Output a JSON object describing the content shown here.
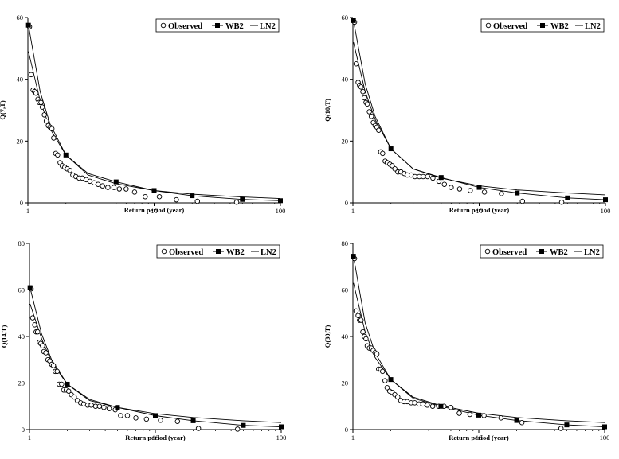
{
  "legend": {
    "observed": "Observed",
    "wb2": "WB2",
    "ln2": "LN2"
  },
  "chart_data": [
    {
      "type": "scatter",
      "ylabel": "Q(7,T)",
      "xlabel": "Return period (year)",
      "xscale": "log",
      "xlim": [
        1,
        100
      ],
      "ylim": [
        0,
        60
      ],
      "x_ticks": [
        "1",
        "10",
        "100"
      ],
      "y_ticks": [
        "0",
        "20",
        "40",
        "60"
      ],
      "legend_position": "top-right",
      "series": [
        {
          "name": "Observed",
          "marker": "open-circle",
          "x": [
            1.03,
            1.06,
            1.1,
            1.13,
            1.16,
            1.2,
            1.23,
            1.27,
            1.3,
            1.35,
            1.4,
            1.45,
            1.5,
            1.55,
            1.6,
            1.66,
            1.72,
            1.8,
            1.87,
            1.96,
            2.05,
            2.15,
            2.27,
            2.4,
            2.55,
            2.7,
            2.9,
            3.1,
            3.35,
            3.6,
            3.9,
            4.3,
            4.8,
            5.3,
            6,
            7,
            8.5,
            11,
            15,
            22,
            45
          ],
          "y": [
            57,
            41.5,
            36.5,
            36,
            35.5,
            33.5,
            32.5,
            32.5,
            31,
            28.5,
            26.5,
            25,
            24.5,
            24,
            21,
            16,
            15.5,
            13,
            12,
            11.5,
            11,
            10.5,
            9,
            8.5,
            8,
            8,
            7.5,
            7,
            6.5,
            6,
            5.5,
            5,
            5,
            4.5,
            4.5,
            3.5,
            2,
            2,
            1,
            0.5,
            0.2
          ]
        },
        {
          "name": "WB2",
          "marker": "filled-square",
          "x": [
            1.01,
            2,
            5,
            10,
            20,
            50,
            100
          ],
          "y": [
            57.5,
            15.5,
            6.8,
            4,
            2.3,
            1.1,
            0.7
          ]
        },
        {
          "name": "LN2",
          "line": "solid",
          "x": [
            1.01,
            1.25,
            1.5,
            2,
            3,
            5,
            10,
            20,
            50,
            100
          ],
          "y": [
            49,
            33,
            24,
            15.5,
            9,
            6.2,
            4,
            2.8,
            1.9,
            1.4
          ]
        },
        {
          "name": "",
          "line": "solid",
          "x": [
            1.01,
            1.25,
            1.5,
            2,
            3,
            5,
            10,
            20,
            50,
            100
          ],
          "y": [
            57.5,
            36,
            25.5,
            15.5,
            9.5,
            6.8,
            4,
            2.3,
            1.1,
            0.7
          ]
        }
      ]
    },
    {
      "type": "scatter",
      "ylabel": "Q(10,T)",
      "xlabel": "Return period (year)",
      "xscale": "log",
      "xlim": [
        1,
        100
      ],
      "ylim": [
        0,
        60
      ],
      "x_ticks": [
        "1",
        "10",
        "100"
      ],
      "y_ticks": [
        "0",
        "20",
        "40",
        "60"
      ],
      "legend_position": "top-right",
      "series": [
        {
          "name": "Observed",
          "marker": "open-circle",
          "x": [
            1.03,
            1.06,
            1.1,
            1.13,
            1.16,
            1.2,
            1.23,
            1.27,
            1.3,
            1.35,
            1.4,
            1.45,
            1.5,
            1.55,
            1.6,
            1.66,
            1.72,
            1.8,
            1.87,
            1.96,
            2.05,
            2.15,
            2.27,
            2.4,
            2.55,
            2.7,
            2.9,
            3.1,
            3.35,
            3.6,
            3.9,
            4.3,
            4.8,
            5.3,
            6,
            7,
            8.5,
            11,
            15,
            22,
            45
          ],
          "y": [
            58.5,
            45,
            39,
            38,
            37.5,
            36,
            34,
            32.5,
            32,
            29.5,
            28,
            26,
            25,
            24.5,
            23.5,
            16.5,
            16,
            13.5,
            13,
            12.5,
            12,
            11,
            10,
            10,
            9.5,
            9,
            9,
            8.5,
            8.5,
            8.5,
            8.5,
            8,
            7,
            6,
            5,
            4.5,
            4,
            3.5,
            3,
            0.5,
            0.2
          ]
        },
        {
          "name": "WB2",
          "marker": "filled-square",
          "x": [
            1.01,
            2,
            5,
            10,
            20,
            50,
            100
          ],
          "y": [
            59,
            17.5,
            8.2,
            5,
            3.2,
            1.6,
            1
          ]
        },
        {
          "name": "LN2",
          "line": "solid",
          "x": [
            1.01,
            1.25,
            1.5,
            2,
            3,
            5,
            10,
            20,
            50,
            100
          ],
          "y": [
            52,
            36,
            27,
            17.5,
            11,
            8,
            5.5,
            4.2,
            3.2,
            2.6
          ]
        },
        {
          "name": "",
          "line": "solid",
          "x": [
            1.01,
            1.25,
            1.5,
            2,
            3,
            5,
            10,
            20,
            50,
            100
          ],
          "y": [
            59,
            38.5,
            28,
            17.5,
            11,
            8.2,
            5,
            3.2,
            1.6,
            1
          ]
        }
      ]
    },
    {
      "type": "scatter",
      "ylabel": "Q(14,T)",
      "xlabel": "Return period (year)",
      "xscale": "log",
      "xlim": [
        1,
        100
      ],
      "ylim": [
        0,
        80
      ],
      "x_ticks": [
        "1",
        "10",
        "100"
      ],
      "y_ticks": [
        "0",
        "20",
        "40",
        "60",
        "80"
      ],
      "legend_position": "top-right",
      "series": [
        {
          "name": "Observed",
          "marker": "open-circle",
          "x": [
            1.03,
            1.06,
            1.1,
            1.13,
            1.16,
            1.2,
            1.23,
            1.27,
            1.3,
            1.35,
            1.4,
            1.45,
            1.5,
            1.55,
            1.6,
            1.66,
            1.72,
            1.8,
            1.87,
            1.96,
            2.05,
            2.15,
            2.27,
            2.4,
            2.55,
            2.7,
            2.9,
            3.1,
            3.35,
            3.6,
            3.9,
            4.3,
            4.8,
            5.3,
            6,
            7,
            8.5,
            11,
            15,
            22,
            45
          ],
          "y": [
            60.5,
            48,
            45,
            42,
            42,
            37.5,
            37,
            36,
            33.5,
            33,
            30,
            29.5,
            28,
            27.5,
            25,
            25,
            19.5,
            19.5,
            17,
            17,
            16.5,
            15,
            14,
            12.5,
            11.5,
            11,
            10.5,
            10.5,
            10,
            10,
            9.5,
            9,
            8.5,
            6,
            6,
            5,
            4.5,
            4,
            3.5,
            0.5,
            0.2
          ]
        },
        {
          "name": "WB2",
          "marker": "filled-square",
          "x": [
            1.01,
            2,
            5,
            10,
            20,
            50,
            100
          ],
          "y": [
            61,
            19.5,
            9.5,
            6,
            3.8,
            1.8,
            1.2
          ]
        },
        {
          "name": "LN2",
          "line": "solid",
          "x": [
            1.01,
            1.25,
            1.5,
            2,
            3,
            5,
            10,
            20,
            50,
            100
          ],
          "y": [
            54,
            39,
            29,
            19.5,
            13,
            9.5,
            6.8,
            5.2,
            3.8,
            3
          ]
        },
        {
          "name": "",
          "line": "solid",
          "x": [
            1.01,
            1.25,
            1.5,
            2,
            3,
            5,
            10,
            20,
            50,
            100
          ],
          "y": [
            61,
            41,
            30,
            19.5,
            12.5,
            9.5,
            6,
            3.8,
            1.8,
            1.2
          ]
        }
      ]
    },
    {
      "type": "scatter",
      "ylabel": "Q(30,T)",
      "xlabel": "Return period (year)",
      "xscale": "log",
      "xlim": [
        1,
        100
      ],
      "ylim": [
        0,
        80
      ],
      "x_ticks": [
        "1",
        "10",
        "100"
      ],
      "y_ticks": [
        "0",
        "20",
        "40",
        "60",
        "80"
      ],
      "legend_position": "top-right",
      "series": [
        {
          "name": "Observed",
          "marker": "open-circle",
          "x": [
            1.03,
            1.06,
            1.1,
            1.13,
            1.16,
            1.2,
            1.23,
            1.27,
            1.3,
            1.35,
            1.4,
            1.45,
            1.5,
            1.55,
            1.6,
            1.66,
            1.72,
            1.8,
            1.87,
            1.96,
            2.05,
            2.15,
            2.27,
            2.4,
            2.55,
            2.7,
            2.9,
            3.1,
            3.35,
            3.6,
            3.9,
            4.3,
            4.8,
            5.3,
            6,
            7,
            8.5,
            11,
            15,
            22,
            45
          ],
          "y": [
            73.5,
            51,
            49,
            47,
            47,
            42,
            40,
            39,
            36,
            35,
            35,
            34,
            33,
            32.5,
            26,
            26,
            25,
            21,
            18,
            16.5,
            16,
            15,
            14,
            12.5,
            12,
            12,
            11.5,
            11.5,
            11,
            11,
            10.5,
            10,
            10,
            10,
            9.5,
            7,
            6.5,
            6,
            5,
            3,
            0.5
          ]
        },
        {
          "name": "WB2",
          "marker": "filled-square",
          "x": [
            1.01,
            2,
            5,
            10,
            20,
            50,
            100
          ],
          "y": [
            74.5,
            21.5,
            10,
            6.2,
            3.9,
            2,
            1.2
          ]
        },
        {
          "name": "LN2",
          "line": "solid",
          "x": [
            1.01,
            1.25,
            1.5,
            2,
            3,
            5,
            10,
            20,
            50,
            100
          ],
          "y": [
            63,
            42,
            31,
            21.5,
            14,
            10.3,
            7,
            5.2,
            3.8,
            3
          ]
        },
        {
          "name": "",
          "line": "solid",
          "x": [
            1.01,
            1.25,
            1.5,
            2,
            3,
            5,
            10,
            20,
            50,
            100
          ],
          "y": [
            74.5,
            46,
            33,
            21.5,
            13.5,
            10,
            6.2,
            3.9,
            2,
            1.2
          ]
        }
      ]
    }
  ]
}
